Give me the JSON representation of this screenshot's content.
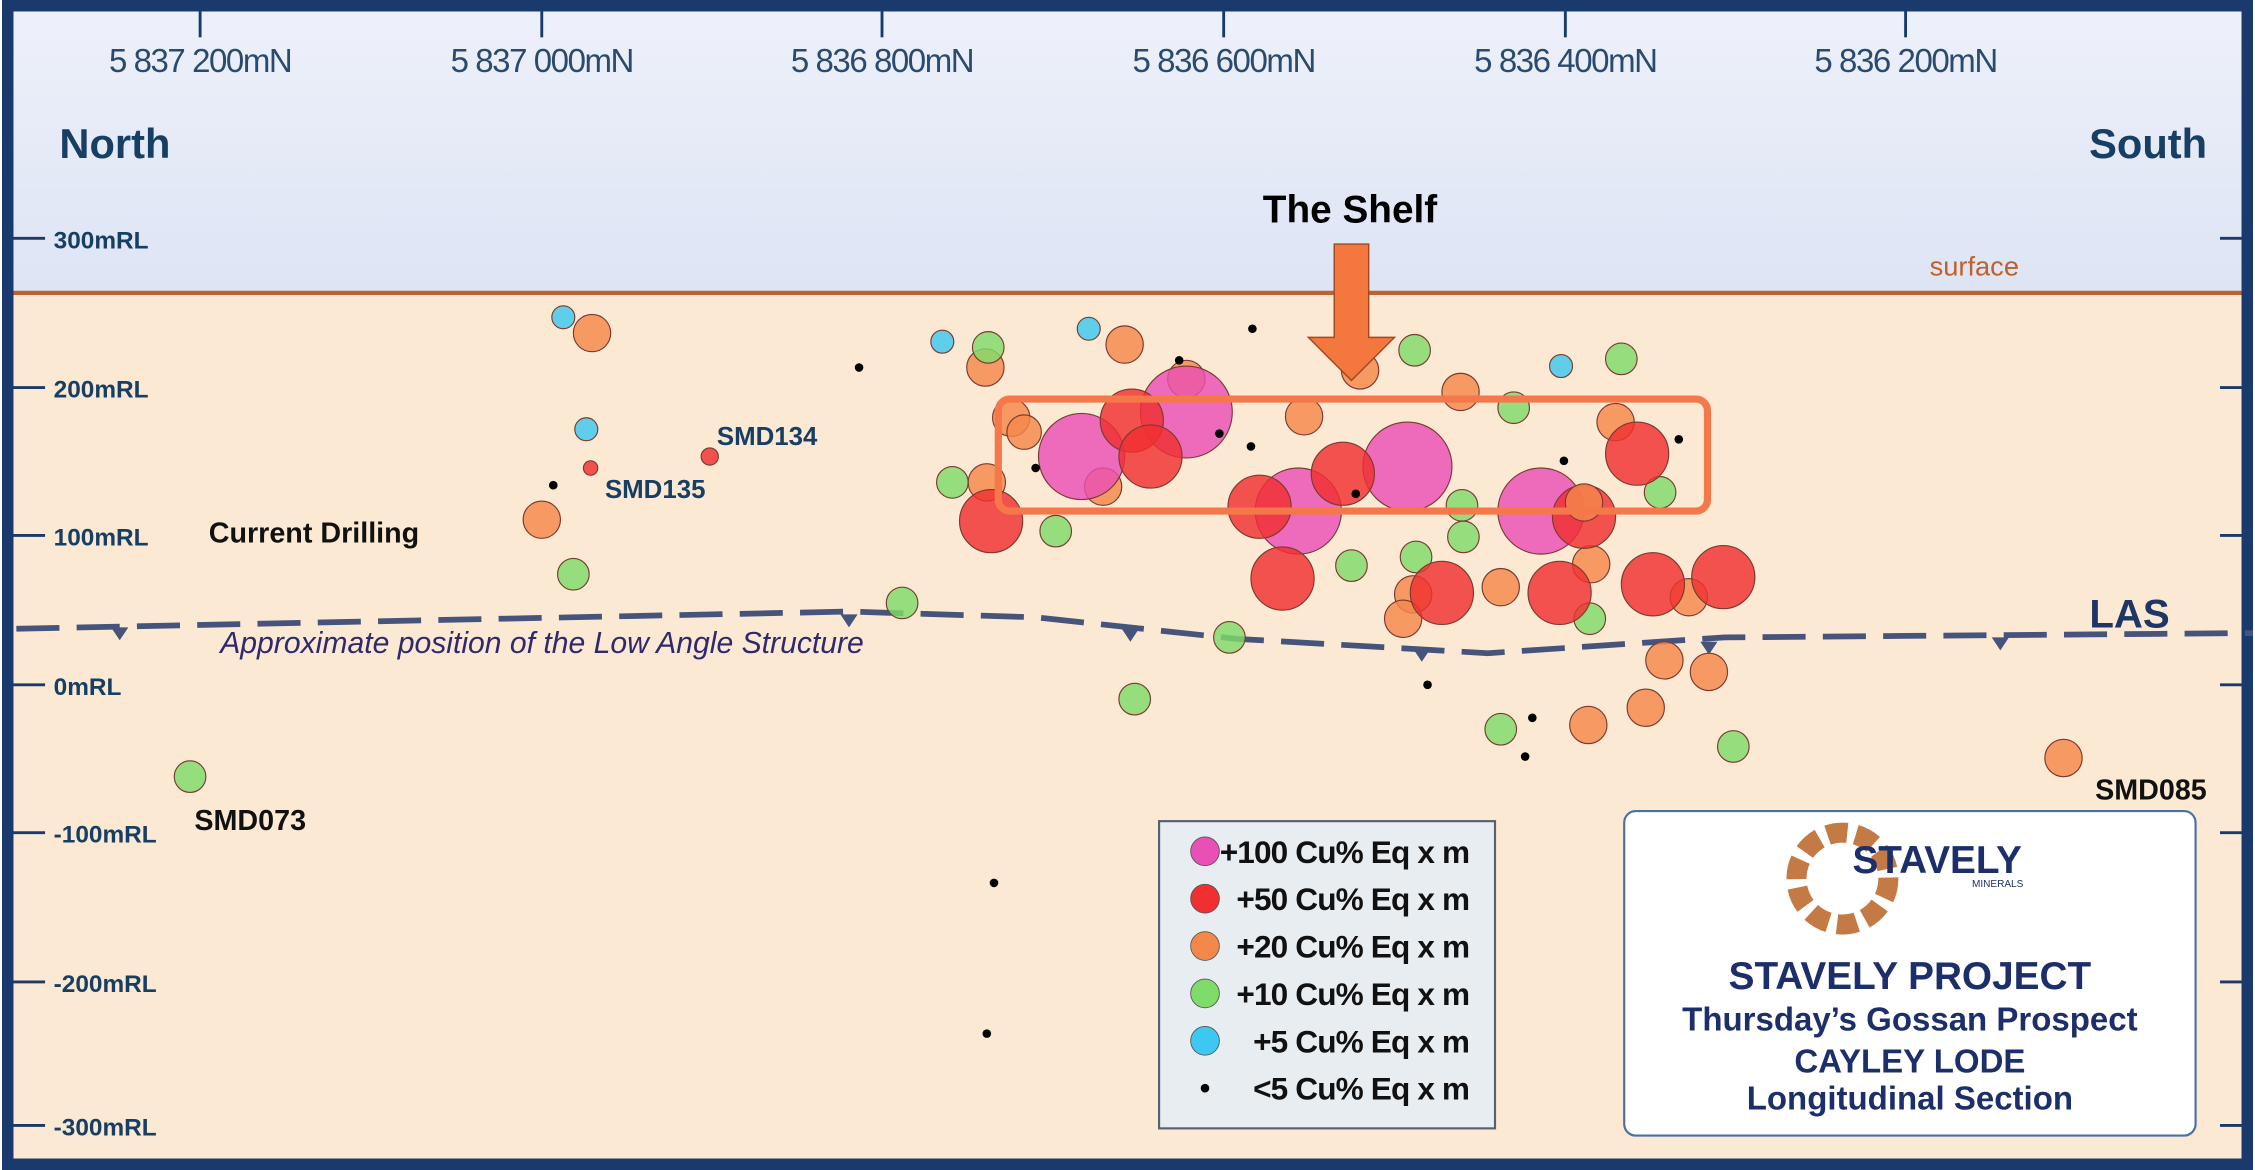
{
  "header": {
    "north": "North",
    "south": "South"
  },
  "eastings": [
    "5 837  200mN",
    "5 837  000mN",
    "5 836 800mN",
    "5 836 600mN",
    "5 836 400mN",
    "5 836  200mN"
  ],
  "elevations": [
    "300mRL",
    "200mRL",
    "100mRL",
    "0mRL",
    "-100mRL",
    "-200mRL",
    "-300mRL"
  ],
  "labels": {
    "surface": "surface",
    "shelf": "The Shelf",
    "current_drilling": "Current Drilling",
    "las_note": "Approximate position of the Low Angle Structure",
    "las": "LAS",
    "holes": [
      "SMD134",
      "SMD135",
      "SMD073",
      "SMD085"
    ]
  },
  "legend": [
    "+100 Cu% Eq x m",
    "+50 Cu% Eq x m",
    "+20 Cu% Eq x m",
    "+10 Cu% Eq x m",
    "+5 Cu% Eq x m",
    "<5 Cu% Eq x m"
  ],
  "title_box": {
    "logo": "STAVELY",
    "logo_sub": "MINERALS",
    "project": "STAVELY PROJECT",
    "prospect": "Thursday’s Gossan Prospect",
    "lode": "CAYLEY LODE",
    "section": "Longitudinal Section"
  }
}
